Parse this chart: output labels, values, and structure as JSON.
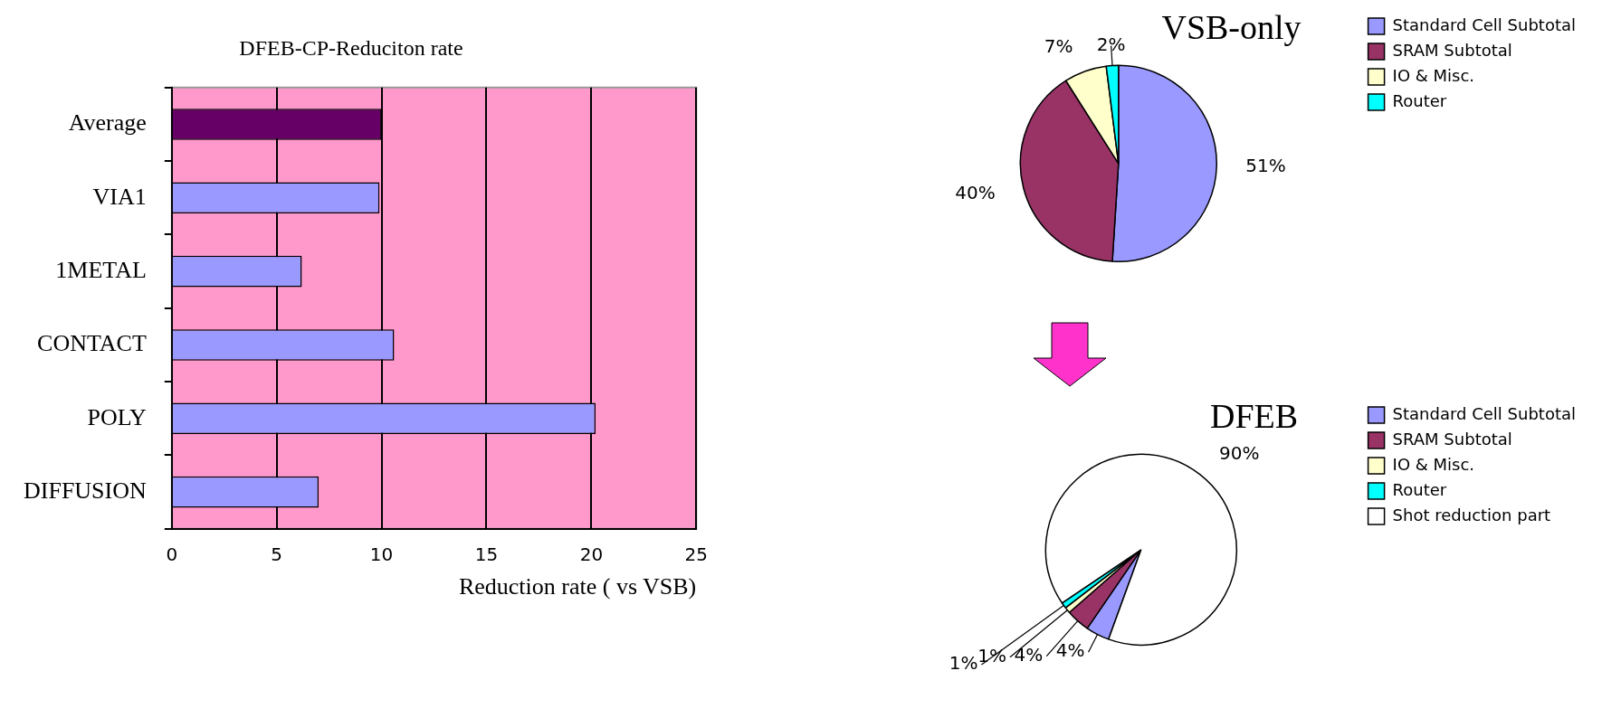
{
  "chart_data": [
    {
      "type": "bar",
      "orientation": "horizontal",
      "title": "DFEB-CP-Reduciton rate",
      "xlabel": "Reduction rate ( vs VSB)",
      "categories": [
        "Average",
        "VIA1",
        "1METAL",
        "CONTACT",
        "POLY",
        "DIFFUSION"
      ],
      "values": [
        10.0,
        9.9,
        6.2,
        10.6,
        20.2,
        7.0
      ],
      "colors": [
        "#660066",
        "#9999ff",
        "#9999ff",
        "#9999ff",
        "#9999ff",
        "#9999ff"
      ],
      "xlim": [
        0,
        25
      ],
      "xticks": [
        0,
        5,
        10,
        15,
        20,
        25
      ],
      "grid": "x",
      "legend": false
    },
    {
      "type": "pie",
      "title": "VSB-only",
      "categories": [
        "Standard Cell Subtotal",
        "SRAM Subtotal",
        "IO & Misc.",
        "Router"
      ],
      "values": [
        51,
        40,
        7,
        2
      ],
      "value_labels": [
        "51%",
        "40%",
        "7%",
        "2%"
      ],
      "colors": [
        "#9999ff",
        "#993366",
        "#ffffcc",
        "#00ffff"
      ],
      "legend": "top right"
    },
    {
      "type": "pie",
      "title": "DFEB",
      "categories": [
        "Standard Cell Subtotal",
        "SRAM Subtotal",
        "IO & Misc.",
        "Router",
        "Shot reduction part"
      ],
      "values": [
        4,
        4,
        1,
        1,
        90
      ],
      "value_labels": [
        "4%",
        "4%",
        "1%",
        "1%",
        "90%"
      ],
      "colors": [
        "#9999ff",
        "#993366",
        "#ffffcc",
        "#00ffff",
        "#ffffff"
      ],
      "legend": "top right"
    }
  ]
}
